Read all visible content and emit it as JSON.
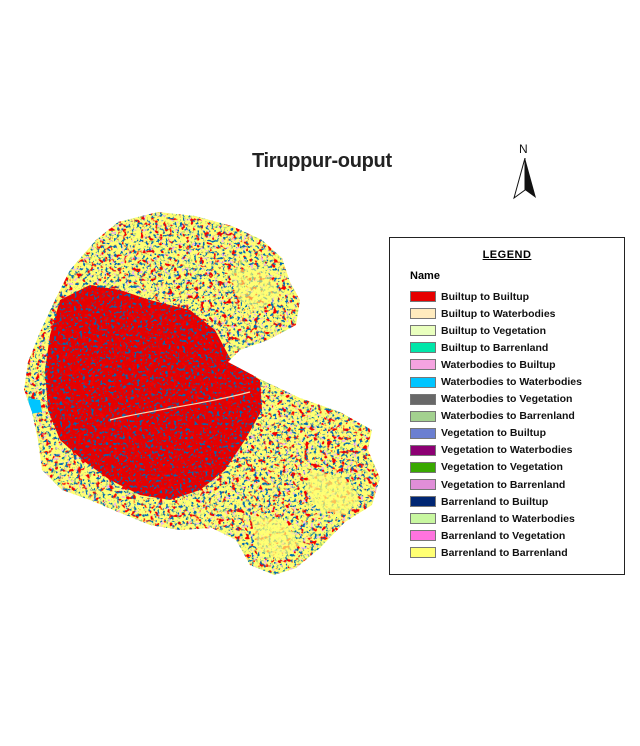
{
  "title": "Tiruppur-ouput",
  "north_arrow": {
    "label": "N"
  },
  "legend": {
    "title": "LEGEND",
    "name_header": "Name",
    "items": [
      {
        "label": "Builtup to Builtup",
        "color": "#e60000"
      },
      {
        "label": "Builtup to Waterbodies",
        "color": "#ffebbe"
      },
      {
        "label": "Builtup to Vegetation",
        "color": "#e9ffbe"
      },
      {
        "label": "Builtup to Barrenland",
        "color": "#00e6a9"
      },
      {
        "label": "Waterbodies to Builtup",
        "color": "#f5a3e0"
      },
      {
        "label": "Waterbodies to Waterbodies",
        "color": "#00c5ff"
      },
      {
        "label": "Waterbodies to Vegetation",
        "color": "#686868"
      },
      {
        "label": "Waterbodies to Barrenland",
        "color": "#a3d18f"
      },
      {
        "label": "Vegetation to Builtup",
        "color": "#6b7fd1"
      },
      {
        "label": "Vegetation to Waterbodies",
        "color": "#8c0073"
      },
      {
        "label": "Vegetation to Vegetation",
        "color": "#38a800"
      },
      {
        "label": "Vegetation to Barrenland",
        "color": "#e08ed8"
      },
      {
        "label": "Barrenland to Builtup",
        "color": "#002673"
      },
      {
        "label": "Barrenland to Waterbodies",
        "color": "#c8f7a0"
      },
      {
        "label": "Barrenland to Vegetation",
        "color": "#ff73df"
      },
      {
        "label": "Barrenland to Barrenland",
        "color": "#ffff73"
      }
    ]
  }
}
